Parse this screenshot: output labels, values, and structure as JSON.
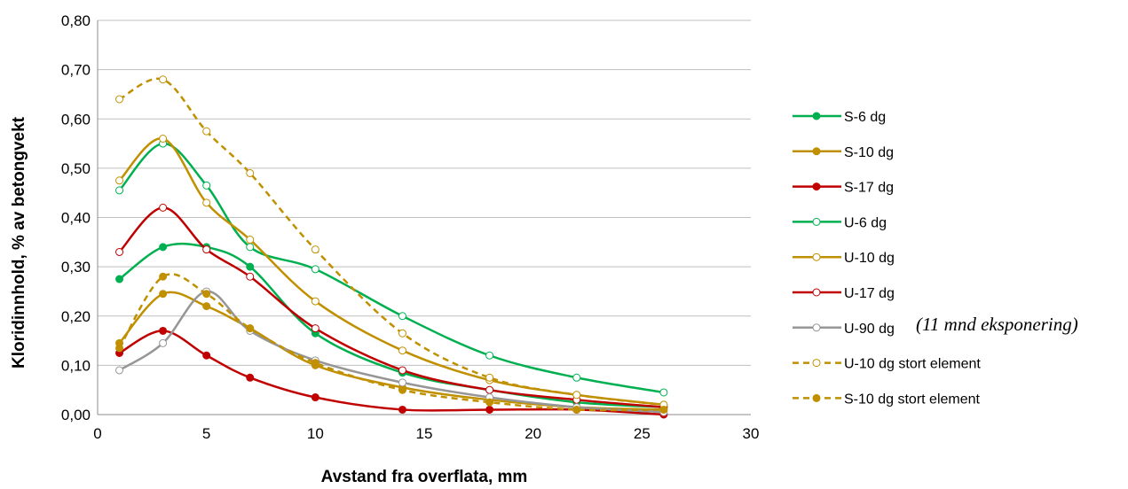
{
  "chart_data": {
    "type": "line",
    "xlabel": "Avstand fra overflata, mm",
    "ylabel": "Kloridinnhold, % av betongvekt",
    "xlim": [
      0,
      30
    ],
    "ylim": [
      0,
      0.8
    ],
    "x_ticks": [
      "0",
      "5",
      "10",
      "15",
      "20",
      "25",
      "30"
    ],
    "y_ticks": [
      "0,00",
      "0,10",
      "0,20",
      "0,30",
      "0,40",
      "0,50",
      "0,60",
      "0,70",
      "0,80"
    ],
    "grid": "horizontal",
    "legend_position": "right",
    "annotation": "(11 mnd eksponering)",
    "series": [
      {
        "name": "S-6 dg",
        "color": "#00b050",
        "marker": "filled",
        "dash": false,
        "x": [
          1,
          3,
          5,
          7,
          10,
          14,
          18,
          22,
          26
        ],
        "y": [
          0.275,
          0.34,
          0.34,
          0.3,
          0.165,
          0.085,
          0.05,
          0.025,
          0.015
        ]
      },
      {
        "name": "S-10 dg",
        "color": "#c09000",
        "marker": "filled",
        "dash": false,
        "x": [
          1,
          3,
          5,
          7,
          10,
          14,
          18,
          22,
          26
        ],
        "y": [
          0.145,
          0.245,
          0.22,
          0.175,
          0.1,
          0.055,
          0.03,
          0.015,
          0.01
        ]
      },
      {
        "name": "S-17 dg",
        "color": "#c00000",
        "marker": "filled",
        "dash": false,
        "x": [
          1,
          3,
          5,
          7,
          10,
          14,
          18,
          22,
          26
        ],
        "y": [
          0.125,
          0.17,
          0.12,
          0.075,
          0.035,
          0.01,
          0.01,
          0.01,
          0.0
        ]
      },
      {
        "name": "U-6 dg",
        "color": "#00b050",
        "marker": "hollow",
        "dash": false,
        "x": [
          1,
          3,
          5,
          7,
          10,
          14,
          18,
          22,
          26
        ],
        "y": [
          0.455,
          0.55,
          0.465,
          0.34,
          0.295,
          0.2,
          0.12,
          0.075,
          0.045
        ]
      },
      {
        "name": "U-10 dg",
        "color": "#c09000",
        "marker": "hollow",
        "dash": false,
        "x": [
          1,
          3,
          5,
          7,
          10,
          14,
          18,
          22,
          26
        ],
        "y": [
          0.475,
          0.56,
          0.43,
          0.355,
          0.23,
          0.13,
          0.07,
          0.04,
          0.02
        ]
      },
      {
        "name": "U-17 dg",
        "color": "#c00000",
        "marker": "hollow",
        "dash": false,
        "x": [
          1,
          3,
          5,
          7,
          10,
          14,
          18,
          22,
          26
        ],
        "y": [
          0.33,
          0.42,
          0.335,
          0.28,
          0.175,
          0.09,
          0.05,
          0.03,
          0.015
        ]
      },
      {
        "name": "U-90 dg",
        "color": "#969696",
        "marker": "hollow",
        "dash": false,
        "x": [
          1,
          3,
          5,
          7,
          10,
          14,
          18,
          22,
          26
        ],
        "y": [
          0.09,
          0.145,
          0.25,
          0.17,
          0.11,
          0.065,
          0.035,
          0.015,
          0.005
        ]
      },
      {
        "name": "U-10 dg stort element",
        "color": "#c09000",
        "marker": "hollow",
        "dash": true,
        "x": [
          1,
          3,
          5,
          7,
          10,
          14,
          18,
          22,
          26
        ],
        "y": [
          0.64,
          0.68,
          0.575,
          0.49,
          0.335,
          0.165,
          0.075,
          0.04,
          0.02
        ]
      },
      {
        "name": "S-10 dg stort element",
        "color": "#c09000",
        "marker": "filled",
        "dash": true,
        "x": [
          1,
          3,
          5,
          7,
          10,
          14,
          18,
          22,
          26
        ],
        "y": [
          0.135,
          0.28,
          0.245,
          0.175,
          0.105,
          0.05,
          0.025,
          0.01,
          0.01
        ]
      }
    ]
  }
}
